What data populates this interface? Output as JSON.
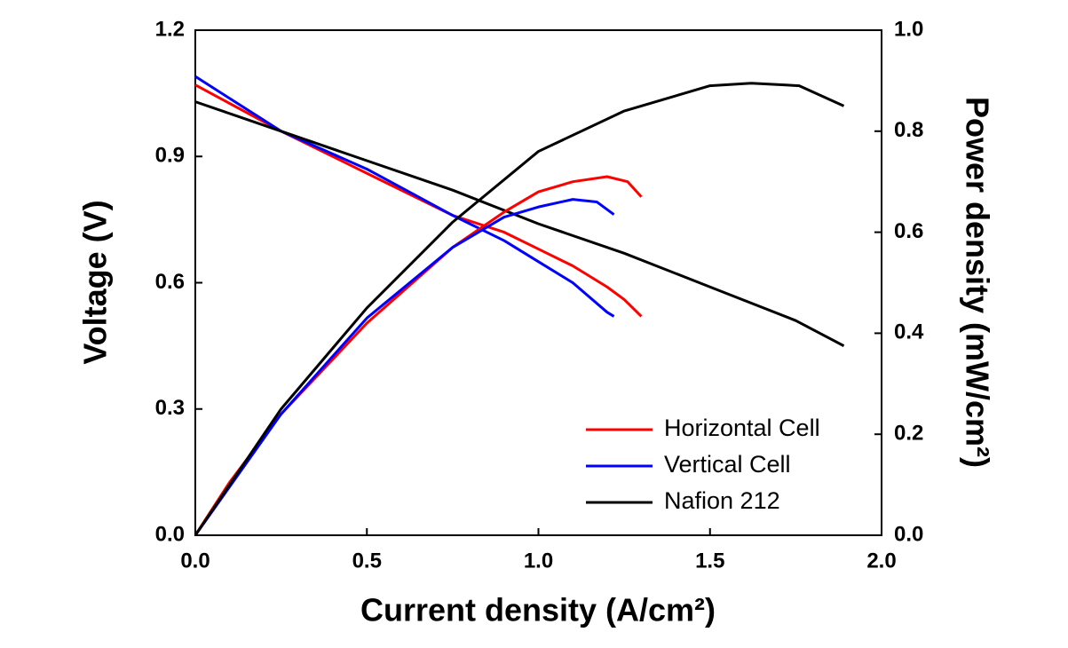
{
  "chart_data": {
    "type": "line",
    "xlabel": "Current density (A/cm²)",
    "ylabel": "Voltage (V)",
    "y2label": "Power density (mW/cm²)",
    "xlim": [
      0,
      2.0
    ],
    "ylim": [
      0,
      1.2
    ],
    "y2lim": [
      0,
      1.0
    ],
    "xticks": [
      {
        "value": 0,
        "label": "0.0"
      },
      {
        "value": 0.5,
        "label": "0.5"
      },
      {
        "value": 1.0,
        "label": "1.0"
      },
      {
        "value": 1.5,
        "label": "1.5"
      },
      {
        "value": 2.0,
        "label": "2.0"
      }
    ],
    "yticks": [
      {
        "value": 0,
        "label": "0.0"
      },
      {
        "value": 0.3,
        "label": "0.3"
      },
      {
        "value": 0.6,
        "label": "0.6"
      },
      {
        "value": 0.9,
        "label": "0.9"
      },
      {
        "value": 1.2,
        "label": "1.2"
      }
    ],
    "y2ticks": [
      {
        "value": 0,
        "label": "0.0"
      },
      {
        "value": 0.2,
        "label": "0.2"
      },
      {
        "value": 0.4,
        "label": "0.4"
      },
      {
        "value": 0.6,
        "label": "0.6"
      },
      {
        "value": 0.8,
        "label": "0.8"
      },
      {
        "value": 1.0,
        "label": "1.0"
      }
    ],
    "legend": "lower right",
    "series": [
      {
        "name": "Horizontal Cell",
        "color": "#ff0000",
        "x": [
          0,
          0.25,
          0.5,
          0.75,
          0.9,
          1.0,
          1.1,
          1.2,
          1.25,
          1.3
        ],
        "values": [
          1.07,
          0.96,
          0.86,
          0.76,
          0.72,
          0.68,
          0.64,
          0.59,
          0.56,
          0.52
        ]
      },
      {
        "name": "Vertical Cell",
        "color": "#0000ff",
        "x": [
          0,
          0.25,
          0.5,
          0.75,
          0.9,
          1.0,
          1.1,
          1.2,
          1.22
        ],
        "values": [
          1.09,
          0.96,
          0.87,
          0.76,
          0.7,
          0.65,
          0.6,
          0.53,
          0.52
        ]
      },
      {
        "name": "Nafion 212",
        "color": "#000000",
        "x": [
          0,
          0.25,
          0.5,
          0.75,
          1.0,
          1.25,
          1.5,
          1.75,
          1.89
        ],
        "values": [
          1.03,
          0.96,
          0.89,
          0.82,
          0.74,
          0.67,
          0.59,
          0.51,
          0.45
        ]
      },
      {
        "color": "#ff0000",
        "axis": "y2",
        "x": [
          0,
          0.1,
          0.25,
          0.5,
          0.75,
          0.9,
          1.0,
          1.1,
          1.2,
          1.26,
          1.3
        ],
        "values": [
          0,
          0.105,
          0.24,
          0.42,
          0.57,
          0.64,
          0.68,
          0.7,
          0.71,
          0.7,
          0.67
        ]
      },
      {
        "color": "#0000ff",
        "axis": "y2",
        "x": [
          0,
          0.25,
          0.5,
          0.75,
          0.9,
          1.0,
          1.1,
          1.17,
          1.22
        ],
        "values": [
          0,
          0.24,
          0.43,
          0.57,
          0.63,
          0.65,
          0.665,
          0.66,
          0.635
        ]
      },
      {
        "color": "#000000",
        "axis": "y2",
        "x": [
          0,
          0.25,
          0.5,
          0.75,
          1.0,
          1.25,
          1.5,
          1.62,
          1.76,
          1.89
        ],
        "values": [
          0,
          0.25,
          0.45,
          0.62,
          0.76,
          0.84,
          0.89,
          0.895,
          0.89,
          0.85
        ]
      }
    ]
  }
}
